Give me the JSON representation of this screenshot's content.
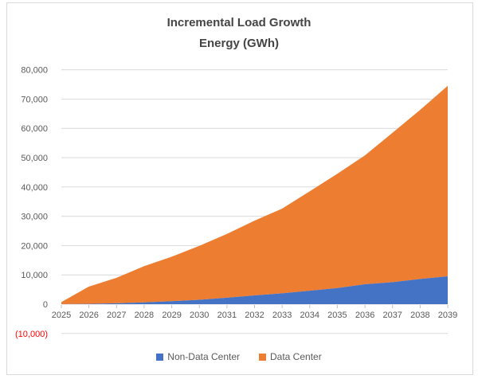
{
  "chart": {
    "title_line1": "Incremental Load Growth",
    "title_line2": "Energy (GWh)",
    "colors": {
      "non_data_center": "#4472C4",
      "data_center": "#ED7D31",
      "gridline": "#D9D9D9",
      "axis_text": "#595959",
      "title_text": "#444444",
      "negative_label": "#FF0000",
      "border": "#D9D9D9"
    }
  },
  "chart_data": {
    "type": "area",
    "stacked": true,
    "title": "Incremental Load Growth Energy (GWh)",
    "categories": [
      "2025",
      "2026",
      "2027",
      "2028",
      "2029",
      "2030",
      "2031",
      "2032",
      "2033",
      "2034",
      "2035",
      "2036",
      "2037",
      "2038",
      "2039"
    ],
    "series": [
      {
        "name": "Non-Data Center",
        "color": "#4472C4",
        "values": [
          0,
          100,
          300,
          600,
          1000,
          1500,
          2200,
          3000,
          3700,
          4600,
          5500,
          6800,
          7500,
          8600,
          9500
        ]
      },
      {
        "name": "Data Center",
        "color": "#ED7D31",
        "values": [
          700,
          5900,
          8700,
          12400,
          15200,
          18400,
          21800,
          25500,
          28900,
          33900,
          39000,
          44000,
          51000,
          57700,
          65000
        ]
      }
    ],
    "stacked_totals": [
      700,
      6000,
      9000,
      13000,
      16200,
      19900,
      24000,
      28500,
      32600,
      38500,
      44500,
      50800,
      58500,
      66300,
      74500
    ],
    "ylim": [
      -10000,
      80000
    ],
    "ytick_step": 10000,
    "ytick_labels": [
      "80,000",
      "70,000",
      "60,000",
      "50,000",
      "40,000",
      "30,000",
      "20,000",
      "10,000",
      "0",
      "(10,000)"
    ],
    "grid": true,
    "legend_position": "bottom"
  }
}
